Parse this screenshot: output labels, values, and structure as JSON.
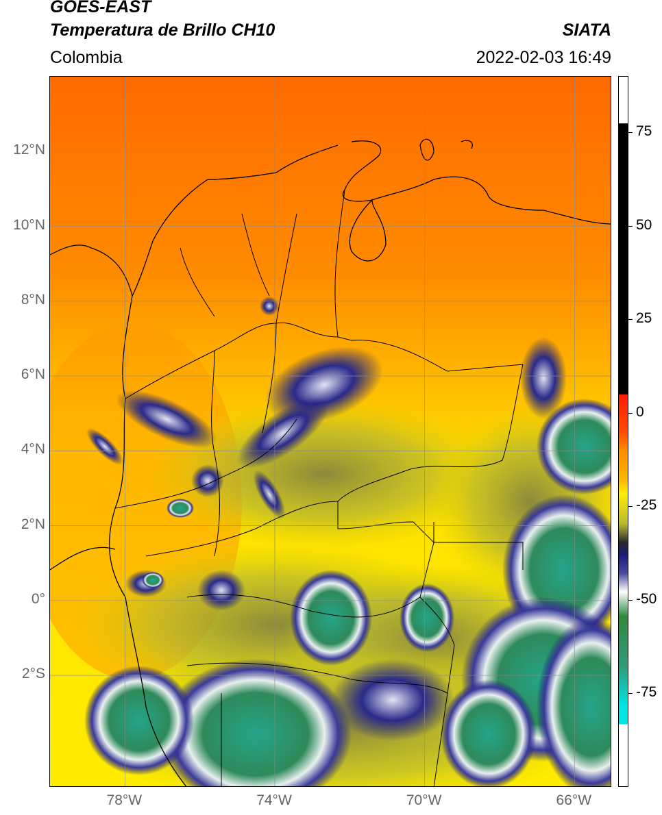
{
  "header": {
    "satellite": "GOES-EAST",
    "product": "Temperatura de Brillo CH10",
    "region": "Colombia",
    "organization": "SIATA",
    "datetime": "2022-02-03 16:49"
  },
  "map": {
    "lat_labels": [
      "12°N",
      "10°N",
      "8°N",
      "6°N",
      "4°N",
      "2°N",
      "0°",
      "2°S"
    ],
    "lon_labels": [
      "78°W",
      "74°W",
      "70°W",
      "66°W"
    ],
    "lat_values": [
      12,
      10,
      8,
      6,
      4,
      2,
      0,
      -2
    ],
    "lon_values": [
      -78,
      -74,
      -70,
      -66
    ],
    "lon_range": [
      -80,
      -65
    ],
    "lat_range": [
      -5,
      14
    ],
    "grid": true
  },
  "colorbar": {
    "tick_values": [
      75,
      50,
      25,
      0,
      -25,
      -50,
      -75
    ],
    "tick_labels": [
      "75",
      "50",
      "25",
      "0",
      "-25",
      "-50",
      "-75"
    ],
    "range": [
      -100,
      90
    ],
    "colors": {
      "hot": "#000000",
      "warm_red": "#ff1a00",
      "orange": "#ff8a00",
      "yellow": "#ffee00",
      "olive": "#b8b830",
      "navy": "#1a1a7a",
      "white": "#ffffff",
      "green": "#2e8a3a",
      "teal": "#20b8a0",
      "cyan": "#00e5e5"
    }
  }
}
